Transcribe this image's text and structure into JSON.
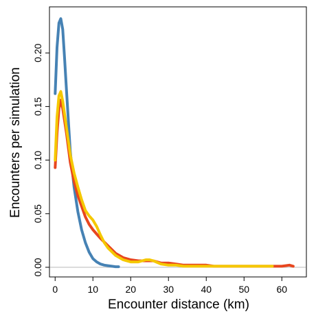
{
  "chart_data": {
    "type": "line",
    "title": "",
    "xlabel": "Encounter distance (km)",
    "ylabel": "Encounters per simulation",
    "xlim": [
      -1.5,
      66.5
    ],
    "ylim": [
      -0.009,
      0.243
    ],
    "xticks": [
      0,
      10,
      20,
      30,
      40,
      50,
      60
    ],
    "yticks": [
      0.0,
      0.05,
      0.1,
      0.15,
      0.2
    ],
    "ytick_labels": [
      "0.00",
      "0.05",
      "0.10",
      "0.15",
      "0.20"
    ],
    "baseline": 0,
    "grid": false,
    "legend": "none",
    "series": [
      {
        "color": "#4682b4",
        "x": [
          0,
          0.5,
          1,
          1.5,
          2,
          2.5,
          3,
          4,
          5,
          6,
          7,
          8,
          9,
          10,
          11,
          12,
          13,
          14,
          15,
          16,
          16.8
        ],
        "y": [
          0.162,
          0.205,
          0.228,
          0.232,
          0.222,
          0.195,
          0.165,
          0.108,
          0.075,
          0.052,
          0.035,
          0.023,
          0.014,
          0.008,
          0.005,
          0.003,
          0.002,
          0.0015,
          0.001,
          0.0005,
          0.0005
        ]
      },
      {
        "color": "#e8461e",
        "x": [
          0,
          0.5,
          1,
          1.5,
          2,
          3,
          4,
          5,
          6,
          7,
          8,
          9,
          10,
          11,
          12,
          14,
          16,
          18,
          20,
          22,
          24,
          26,
          28,
          30,
          32,
          34,
          36,
          38,
          40,
          42,
          44,
          46,
          48,
          50,
          52,
          54,
          56,
          58,
          60,
          62,
          63
        ],
        "y": [
          0.093,
          0.125,
          0.148,
          0.156,
          0.148,
          0.125,
          0.098,
          0.08,
          0.067,
          0.057,
          0.047,
          0.04,
          0.035,
          0.031,
          0.027,
          0.02,
          0.013,
          0.009,
          0.007,
          0.006,
          0.006,
          0.006,
          0.004,
          0.004,
          0.003,
          0.002,
          0.002,
          0.002,
          0.002,
          0.001,
          0.001,
          0.001,
          0.001,
          0.001,
          0.001,
          0.001,
          0.001,
          0.001,
          0.001,
          0.002,
          0.001
        ]
      },
      {
        "color": "#f5c800",
        "x": [
          0,
          0.5,
          1,
          1.5,
          2,
          3,
          4,
          5,
          6,
          7,
          8,
          9,
          10,
          11,
          12,
          13,
          14,
          16,
          18,
          20,
          22,
          24,
          25,
          26,
          28,
          30,
          32,
          34,
          36,
          38,
          40,
          42,
          44,
          46,
          48,
          50,
          52,
          54,
          56,
          57.5
        ],
        "y": [
          0.1,
          0.14,
          0.16,
          0.164,
          0.155,
          0.13,
          0.105,
          0.088,
          0.075,
          0.063,
          0.053,
          0.048,
          0.044,
          0.038,
          0.03,
          0.023,
          0.018,
          0.011,
          0.007,
          0.005,
          0.005,
          0.007,
          0.007,
          0.006,
          0.003,
          0.002,
          0.002,
          0.001,
          0.001,
          0.001,
          0.001,
          0.001,
          0.001,
          0.001,
          0.001,
          0.001,
          0.001,
          0.001,
          0.001,
          0.001
        ]
      }
    ]
  }
}
